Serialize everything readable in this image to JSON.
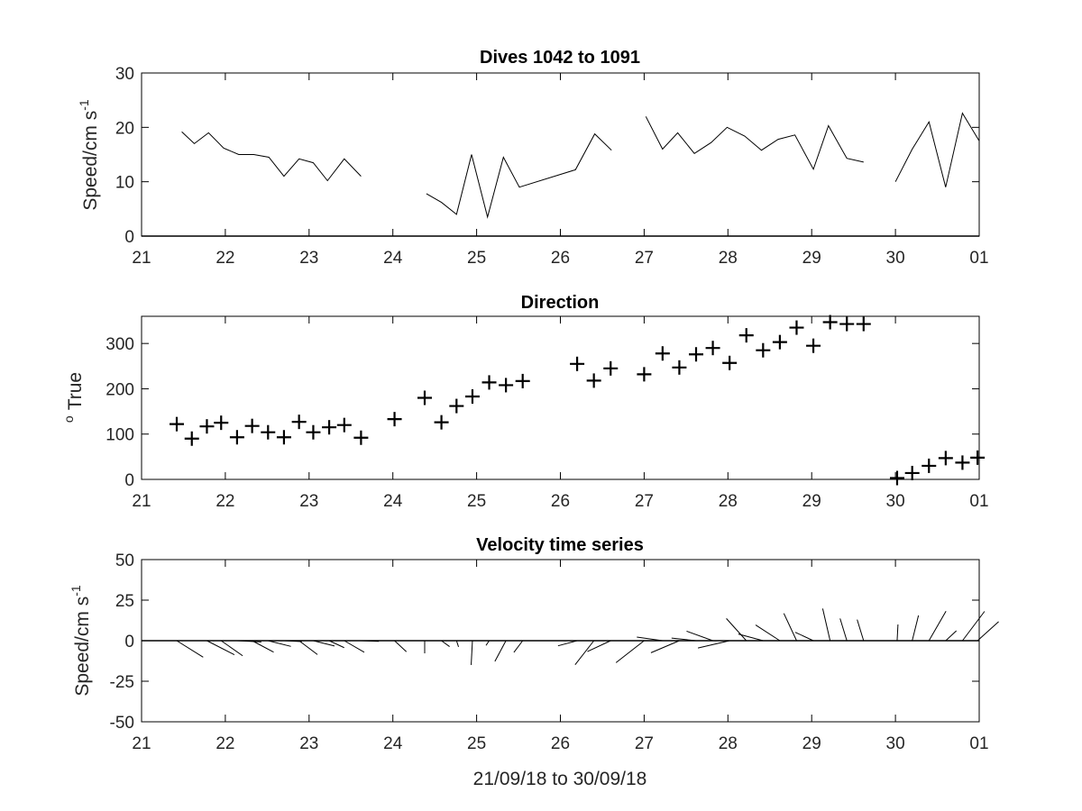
{
  "figure": {
    "xlabel": "21/09/18 to 30/09/18",
    "xticklabels": [
      "21",
      "22",
      "23",
      "24",
      "25",
      "26",
      "27",
      "28",
      "29",
      "30",
      "01"
    ]
  },
  "chart_data": [
    {
      "type": "line",
      "title": "Dives 1042 to 1091",
      "ylabel": "Speed/cm s",
      "ylabel_sup": "-1",
      "xlim": [
        21,
        31
      ],
      "ylim": [
        0,
        30
      ],
      "yticks": [
        0,
        10,
        20,
        30
      ],
      "segments": [
        {
          "x": [
            21.48,
            21.63,
            21.8,
            21.98,
            22.16,
            22.34,
            22.52,
            22.7,
            22.88,
            23.05,
            23.22,
            23.42,
            23.62
          ],
          "y": [
            19.2,
            17.0,
            19.0,
            16.2,
            15.0,
            15.0,
            14.5,
            11.0,
            14.2,
            13.5,
            10.2,
            14.2,
            11.0
          ]
        },
        {
          "x": [
            24.4,
            24.58,
            24.76,
            24.94,
            25.13,
            25.32,
            25.51,
            26.18,
            26.41,
            26.61
          ],
          "y": [
            7.8,
            6.2,
            4.0,
            15.0,
            3.5,
            14.5,
            9.0,
            12.2,
            18.8,
            15.8
          ]
        },
        {
          "x": [
            27.02,
            27.22,
            27.4,
            27.6,
            27.8,
            27.99,
            28.2,
            28.4,
            28.6,
            28.8,
            29.02,
            29.2,
            29.42,
            29.62
          ],
          "y": [
            22.0,
            16.0,
            19.0,
            15.2,
            17.2,
            20.0,
            18.4,
            15.8,
            17.8,
            18.6,
            12.3,
            20.3,
            14.3,
            13.6
          ]
        },
        {
          "x": [
            30.0,
            30.2,
            30.4,
            30.6,
            30.8,
            31.0
          ],
          "y": [
            10.0,
            16.0,
            21.0,
            9.0,
            22.6,
            17.5
          ]
        }
      ]
    },
    {
      "type": "scatter",
      "title": "Direction",
      "ylabel": "True",
      "ylabel_sup": "o",
      "xlim": [
        21,
        31
      ],
      "ylim": [
        0,
        360
      ],
      "yticks": [
        0,
        100,
        200,
        300
      ],
      "marker": "+",
      "x": [
        21.42,
        21.6,
        21.78,
        21.95,
        22.14,
        22.32,
        22.51,
        22.7,
        22.88,
        23.05,
        23.24,
        23.42,
        23.62,
        24.02,
        24.38,
        24.58,
        24.76,
        24.95,
        25.15,
        25.35,
        25.55,
        26.2,
        26.4,
        26.6,
        27.0,
        27.22,
        27.42,
        27.62,
        27.82,
        28.02,
        28.22,
        28.42,
        28.62,
        28.82,
        29.02,
        29.22,
        29.42,
        29.62,
        30.02,
        30.2,
        30.4,
        30.6,
        30.8,
        30.98
      ],
      "y": [
        122,
        90,
        117,
        125,
        93,
        118,
        104,
        93,
        127,
        104,
        115,
        120,
        92,
        133,
        180,
        126,
        162,
        183,
        214,
        208,
        217,
        255,
        218,
        245,
        232,
        278,
        247,
        276,
        290,
        257,
        318,
        285,
        303,
        335,
        295,
        347,
        343,
        343,
        3,
        14,
        30,
        47,
        37,
        48
      ]
    },
    {
      "type": "stick",
      "title": "Velocity time series",
      "ylabel": "Speed/cm s",
      "ylabel_sup": "-1",
      "xlim": [
        21,
        31
      ],
      "ylim": [
        -50,
        50
      ],
      "yticks": [
        -50,
        -25,
        0,
        25,
        50
      ],
      "base_x": [
        21.42,
        21.6,
        21.78,
        21.95,
        22.14,
        22.32,
        22.51,
        22.7,
        22.88,
        23.05,
        23.24,
        23.42,
        23.62,
        24.02,
        24.38,
        24.58,
        24.76,
        24.95,
        25.15,
        25.35,
        25.55,
        26.2,
        26.4,
        26.6,
        27.0,
        27.22,
        27.42,
        27.62,
        27.82,
        28.02,
        28.22,
        28.42,
        28.62,
        28.82,
        29.02,
        29.22,
        29.42,
        29.62,
        30.02,
        30.2,
        30.4,
        30.6,
        30.8,
        30.98
      ],
      "speed": [
        19.2,
        17.0,
        19.0,
        16.2,
        15.0,
        15.0,
        14.5,
        11.0,
        14.2,
        13.5,
        10.2,
        14.2,
        11.0,
        10.0,
        7.8,
        6.2,
        4.0,
        15.0,
        3.5,
        14.5,
        9.0,
        12.2,
        18.8,
        15.8,
        22.0,
        16.0,
        19.0,
        15.2,
        17.2,
        20.0,
        18.4,
        15.8,
        17.8,
        18.6,
        12.3,
        20.3,
        14.3,
        13.6,
        10.0,
        16.0,
        21.0,
        9.0,
        22.6,
        17.5
      ],
      "direction": [
        122,
        90,
        117,
        125,
        93,
        118,
        104,
        93,
        127,
        104,
        115,
        120,
        92,
        133,
        180,
        126,
        162,
        183,
        214,
        208,
        217,
        255,
        218,
        245,
        232,
        278,
        247,
        276,
        290,
        257,
        318,
        285,
        303,
        335,
        295,
        347,
        343,
        343,
        3,
        14,
        30,
        47,
        37,
        48
      ]
    }
  ]
}
